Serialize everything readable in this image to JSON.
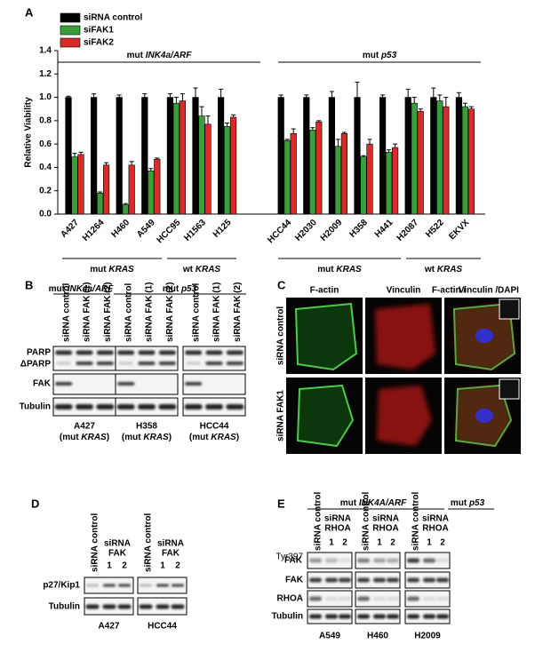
{
  "chart_data": {
    "type": "bar",
    "panel_label": "A",
    "y_label": "Relative Viability",
    "categories": [
      "A427",
      "H1264",
      "H460",
      "A549",
      "HCC95",
      "H1563",
      "H125",
      "HCC44",
      "H2030",
      "H2009",
      "H358",
      "H441",
      "H2087",
      "H522",
      "EKVX"
    ],
    "series": [
      {
        "name": "siRNA control",
        "color": "#000000",
        "values": [
          1.0,
          1.0,
          1.0,
          1.0,
          1.0,
          1.0,
          1.0,
          1.0,
          1.0,
          1.0,
          1.0,
          1.0,
          1.0,
          1.0,
          1.0
        ],
        "errors": [
          0.01,
          0.03,
          0.02,
          0.03,
          0.03,
          0.08,
          0.07,
          0.02,
          0.02,
          0.05,
          0.13,
          0.02,
          0.07,
          0.08,
          0.04
        ]
      },
      {
        "name": "siFAK1",
        "color": "#3a9e3a",
        "values": [
          0.49,
          0.18,
          0.08,
          0.37,
          0.95,
          0.84,
          0.75,
          0.63,
          0.72,
          0.58,
          0.49,
          0.53,
          0.95,
          0.97,
          0.92
        ],
        "errors": [
          0.03,
          0.01,
          0.01,
          0.02,
          0.05,
          0.08,
          0.03,
          0.01,
          0.02,
          0.06,
          0.01,
          0.02,
          0.05,
          0.05,
          0.03
        ]
      },
      {
        "name": "siFAK2",
        "color": "#d92b2b",
        "values": [
          0.51,
          0.42,
          0.42,
          0.47,
          0.97,
          0.77,
          0.83,
          0.69,
          0.79,
          0.69,
          0.6,
          0.57,
          0.88,
          0.92,
          0.9
        ],
        "errors": [
          0.02,
          0.02,
          0.03,
          0.01,
          0.06,
          0.07,
          0.02,
          0.04,
          0.01,
          0.01,
          0.04,
          0.03,
          0.02,
          0.08,
          0.02
        ]
      }
    ],
    "ylim": [
      0,
      1.4
    ],
    "yticks": [
      {
        "value": 0,
        "label": "0.0"
      },
      0.2,
      0.4,
      0.6,
      0.8,
      {
        "value": 1,
        "label": "1.0"
      },
      1.2,
      1.4
    ],
    "legend": "top-left",
    "top_groups": [
      "mut INK4a/ARF",
      "mut p53"
    ],
    "bottom_groups": [
      "mut KRAS",
      "wt KRAS",
      "mut KRAS",
      "wt KRAS"
    ]
  },
  "panels": {
    "B": {
      "label": "B",
      "headers": [
        "mut INK4a/ARF",
        "mut p53"
      ],
      "groups": [
        {
          "lanes": [
            "siRNA control",
            "siRNA FAK (1)",
            "siRNA FAK (2)"
          ],
          "cell": "A427",
          "note": "(mut KRAS)"
        },
        {
          "lanes": [
            "siRNA control",
            "siRNA FAK (1)",
            "siRNA FAK (2)"
          ],
          "cell": "H358",
          "note": "(mut KRAS)"
        },
        {
          "lanes": [
            "siRNA control",
            "siRNA FAK (1)",
            "siRNA FAK (2)"
          ],
          "cell": "HCC44",
          "note": "(mut KRAS)"
        }
      ],
      "rows": [
        "PARP",
        "ΔPARP",
        "FAK",
        "Tubulin"
      ]
    },
    "C": {
      "label": "C",
      "columns": [
        "F-actin",
        "Vinculin"
      ],
      "merged": [
        "F-actin /",
        "Vinculin /",
        "DAPI"
      ],
      "rows": [
        "siRNA control",
        "siRNA FAK1"
      ]
    },
    "D": {
      "label": "D",
      "groups": [
        {
          "control": "siRNA control",
          "treatment": [
            "siRNA",
            "FAK"
          ],
          "lanes": [
            "1",
            "2"
          ],
          "cell": "A427"
        },
        {
          "control": "siRNA control",
          "treatment": [
            "siRNA",
            "FAK"
          ],
          "lanes": [
            "1",
            "2"
          ],
          "cell": "HCC44"
        }
      ],
      "rows": [
        "p27/Kip1",
        "Tubulin"
      ]
    },
    "E": {
      "label": "E",
      "headers": [
        "mut INK4A/ARF",
        "mut p53"
      ],
      "groups": [
        {
          "control": "siRNA control",
          "treatment": [
            "siRNA",
            "RHOA"
          ],
          "lanes": [
            "1",
            "2"
          ],
          "cell": "A549"
        },
        {
          "control": "siRNA control",
          "treatment": [
            "siRNA",
            "RHOA"
          ],
          "lanes": [
            "1",
            "2"
          ],
          "cell": "H460"
        },
        {
          "control": "siRNA control",
          "treatment": [
            "siRNA",
            "RHOA"
          ],
          "lanes": [
            "1",
            "2"
          ],
          "cell": "H2009"
        }
      ],
      "rows": [
        {
          "label": "FAK",
          "superscript": "Tyr397"
        },
        {
          "label": "FAK"
        },
        {
          "label": "RHOA"
        },
        {
          "label": "Tubulin"
        }
      ]
    }
  }
}
